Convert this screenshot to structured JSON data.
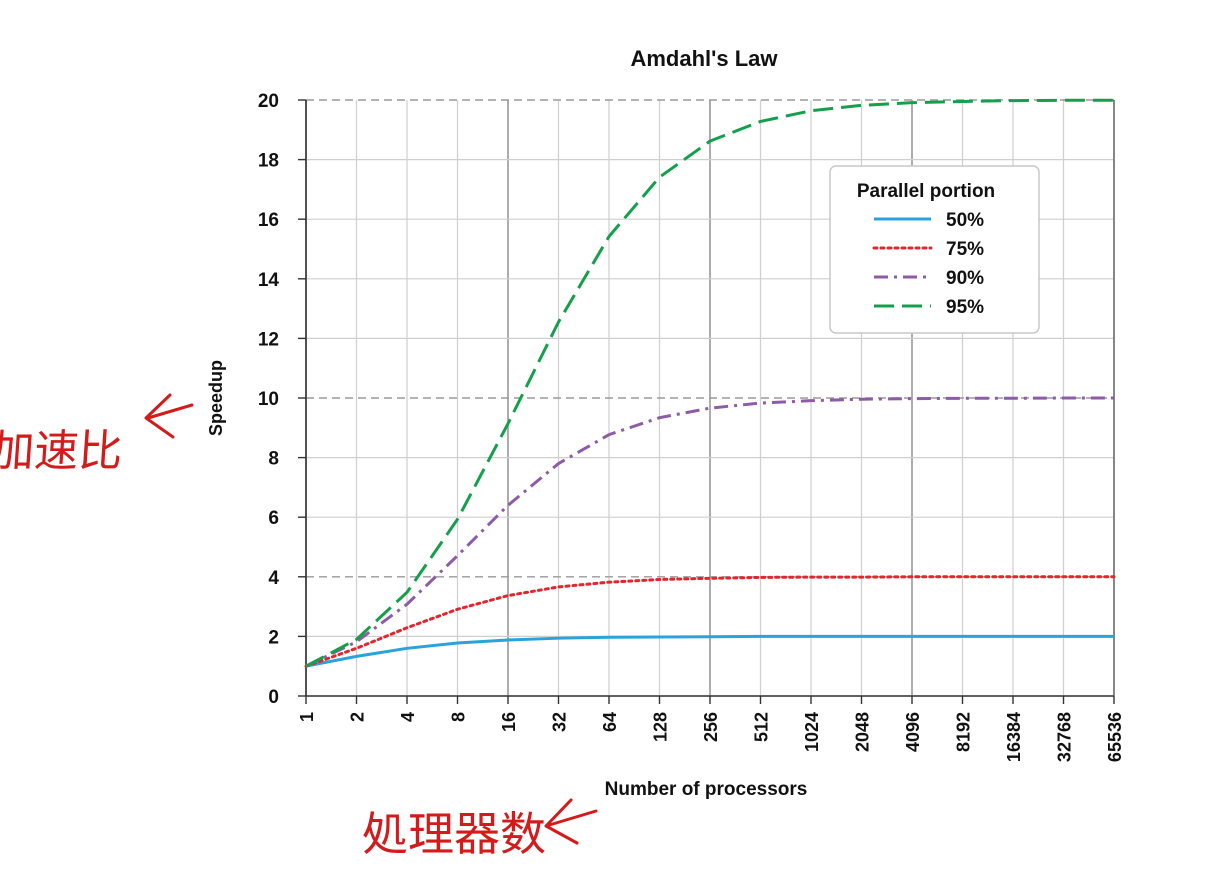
{
  "chart_data": {
    "type": "line",
    "title": "Amdahl's Law",
    "xlabel": "Number of processors",
    "ylabel": "Speedup",
    "x_scale": "log2",
    "categories": [
      "1",
      "2",
      "4",
      "8",
      "16",
      "32",
      "64",
      "128",
      "256",
      "512",
      "1024",
      "2048",
      "4096",
      "8192",
      "16384",
      "32768",
      "65536"
    ],
    "ylim": [
      0,
      20
    ],
    "yticks": [
      "0",
      "2",
      "4",
      "6",
      "8",
      "10",
      "12",
      "14",
      "16",
      "18",
      "20"
    ],
    "grid": true,
    "legend_title": "Parallel portion",
    "legend_position": "top-right",
    "series": [
      {
        "name": "50%",
        "color": "#29a3d9",
        "style": "solid",
        "values": [
          1.0,
          1.33,
          1.6,
          1.78,
          1.88,
          1.94,
          1.97,
          1.98,
          1.99,
          2.0,
          2.0,
          2.0,
          2.0,
          2.0,
          2.0,
          2.0,
          2.0
        ]
      },
      {
        "name": "75%",
        "color": "#e3262d",
        "style": "dotted",
        "values": [
          1.0,
          1.6,
          2.29,
          2.91,
          3.37,
          3.66,
          3.82,
          3.91,
          3.95,
          3.98,
          3.99,
          3.99,
          4.0,
          4.0,
          4.0,
          4.0,
          4.0
        ]
      },
      {
        "name": "90%",
        "color": "#8e5ba6",
        "style": "dashdot",
        "values": [
          1.0,
          1.82,
          3.08,
          4.71,
          6.4,
          7.8,
          8.77,
          9.34,
          9.66,
          9.83,
          9.91,
          9.96,
          9.98,
          9.99,
          9.99,
          10.0,
          10.0
        ]
      },
      {
        "name": "95%",
        "color": "#14a04a",
        "style": "longdash",
        "values": [
          1.0,
          1.9,
          3.48,
          5.93,
          9.14,
          12.55,
          15.42,
          17.41,
          18.62,
          19.28,
          19.64,
          19.82,
          19.91,
          19.95,
          19.98,
          19.99,
          19.99
        ]
      }
    ],
    "annotations": [
      "加速比",
      "処理器数"
    ]
  }
}
